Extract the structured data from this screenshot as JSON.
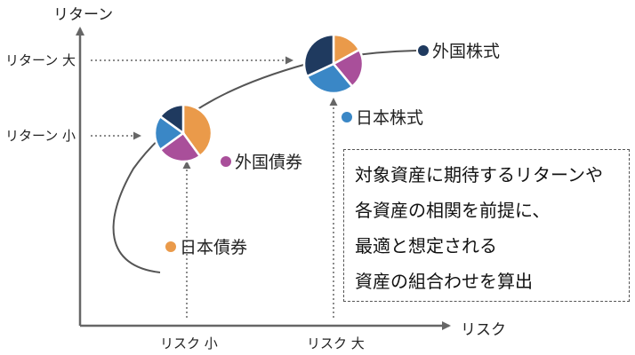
{
  "axes": {
    "y_title": "リターン",
    "x_title": "リスク",
    "y_high": "リターン 大",
    "y_low": "リターン 小",
    "x_low": "リスク 小",
    "x_high": "リスク 大"
  },
  "assets": {
    "foreign_stock": "外国株式",
    "domestic_stock": "日本株式",
    "foreign_bond": "外国債券",
    "domestic_bond": "日本債券"
  },
  "note": {
    "line1": "対象資産に期待するリターンや",
    "line2": "各資産の相関を前提に、",
    "line3": "最適と想定される",
    "line4": "資産の組合わせを算出"
  },
  "colors": {
    "foreign_stock": "#1f3a5f",
    "domestic_stock": "#3a87c6",
    "foreign_bond": "#a94f9a",
    "domestic_bond": "#ea9a4a",
    "axis": "#666666"
  },
  "pies": {
    "low_risk": [
      {
        "asset": "domestic_bond",
        "share": 0.4
      },
      {
        "asset": "foreign_bond",
        "share": 0.25
      },
      {
        "asset": "domestic_stock",
        "share": 0.2
      },
      {
        "asset": "foreign_stock",
        "share": 0.15
      }
    ],
    "high_risk": [
      {
        "asset": "domestic_bond",
        "share": 0.17
      },
      {
        "asset": "foreign_bond",
        "share": 0.22
      },
      {
        "asset": "domestic_stock",
        "share": 0.29
      },
      {
        "asset": "foreign_stock",
        "share": 0.32
      }
    ]
  }
}
